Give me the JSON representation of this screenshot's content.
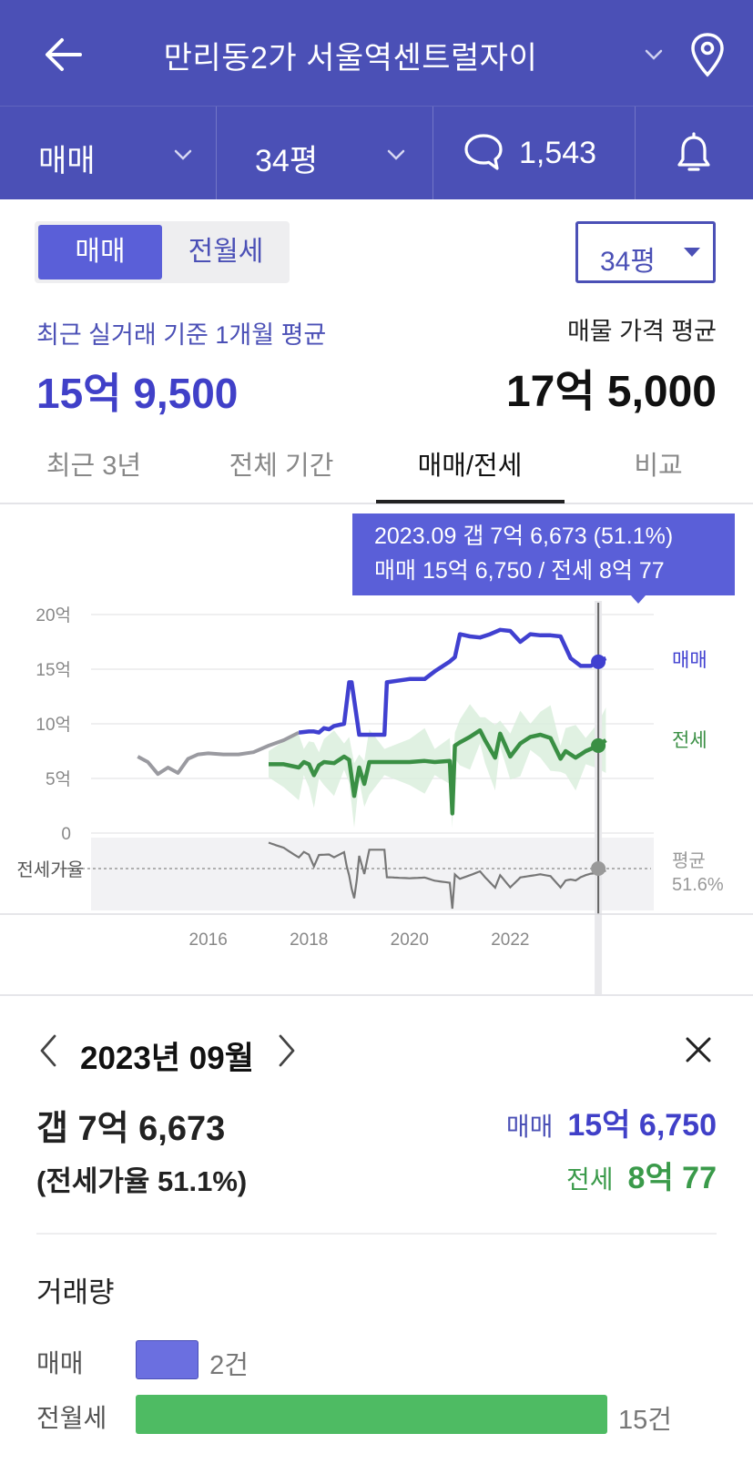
{
  "header": {
    "title": "만리동2가 서울역센트럴자이",
    "icons": [
      "back-arrow-icon",
      "chevron-down-icon",
      "location-pin-icon"
    ]
  },
  "subbar": {
    "deal_type": "매매",
    "size": "34평",
    "comment_count": "1,543",
    "icons": [
      "chevron-down-icon",
      "chat-bubble-icon",
      "bell-icon"
    ]
  },
  "toggle": {
    "sale": "매매",
    "rent": "전월세"
  },
  "size_select": "34평",
  "average": {
    "recent_label": "최근 실거래 기준 1개월 평균",
    "recent_value": "15억 9,500",
    "listing_label": "매물 가격 평균",
    "listing_value": "17억 5,000"
  },
  "tabs": [
    "최근 3년",
    "전체 기간",
    "매매/전세",
    "비교"
  ],
  "active_tab_index": 2,
  "tooltip": {
    "line1": "2023.09  갭 7억 6,673 (51.1%)",
    "line2": "매매 15억 6,750 / 전세 8억 77"
  },
  "chart_data": {
    "type": "line",
    "y_ticks": [
      "20억",
      "15억",
      "10억",
      "5억",
      "0"
    ],
    "x_ticks": [
      "2016",
      "2018",
      "2020",
      "2022"
    ],
    "ratio_axis_label": "전세가율",
    "ratio_avg_label": "평균",
    "ratio_avg_value": "51.6%",
    "ylim": [
      0,
      20
    ],
    "series": [
      {
        "name": "매매",
        "color": "#4040d0",
        "x": [
          2014.6,
          2014.8,
          2015.0,
          2015.2,
          2015.4,
          2015.6,
          2015.8,
          2016.0,
          2016.3,
          2016.6,
          2016.9,
          2017.2,
          2017.5,
          2017.8,
          2018.0,
          2018.1,
          2018.2,
          2018.3,
          2018.4,
          2018.5,
          2018.7,
          2018.8,
          2018.85,
          2019.0,
          2019.3,
          2019.5,
          2019.55,
          2019.7,
          2020.0,
          2020.3,
          2020.5,
          2020.8,
          2020.9,
          2021.0,
          2021.2,
          2021.4,
          2021.6,
          2021.8,
          2022.0,
          2022.2,
          2022.4,
          2022.6,
          2022.8,
          2023.0,
          2023.2,
          2023.4,
          2023.6,
          2023.75,
          2023.9
        ],
        "values": [
          7.0,
          6.5,
          5.4,
          6.0,
          5.5,
          6.8,
          7.2,
          7.3,
          7.2,
          7.2,
          7.4,
          8.0,
          8.5,
          9.2,
          9.3,
          9.3,
          9.2,
          9.6,
          9.5,
          9.8,
          10.0,
          13.8,
          13.8,
          9.0,
          9.0,
          9.0,
          13.8,
          13.9,
          14.1,
          14.1,
          14.8,
          15.7,
          16.1,
          18.2,
          18.0,
          17.9,
          18.2,
          18.6,
          18.5,
          17.5,
          18.2,
          18.1,
          18.1,
          18.0,
          16.0,
          15.3,
          15.3,
          15.7,
          16.0
        ]
      },
      {
        "name": "전세",
        "color": "#3a8f44",
        "x": [
          2017.2,
          2017.5,
          2017.8,
          2017.9,
          2018.0,
          2018.1,
          2018.2,
          2018.3,
          2018.5,
          2018.7,
          2018.8,
          2018.9,
          2019.0,
          2019.1,
          2019.2,
          2019.5,
          2020.0,
          2020.3,
          2020.5,
          2020.8,
          2020.85,
          2020.9,
          2021.0,
          2021.2,
          2021.4,
          2021.5,
          2021.7,
          2021.8,
          2022.0,
          2022.2,
          2022.4,
          2022.6,
          2022.8,
          2023.0,
          2023.1,
          2023.3,
          2023.5,
          2023.75,
          2023.9
        ],
        "values": [
          6.3,
          6.3,
          6.0,
          6.5,
          6.3,
          5.3,
          6.2,
          6.5,
          6.4,
          7.0,
          6.7,
          3.4,
          6.0,
          4.5,
          6.5,
          6.5,
          6.5,
          6.6,
          6.5,
          6.6,
          1.8,
          8.0,
          8.3,
          8.8,
          9.4,
          8.5,
          6.9,
          9.1,
          7.0,
          8.2,
          8.8,
          9.0,
          8.7,
          6.8,
          7.5,
          6.9,
          7.5,
          8.0,
          8.5
        ]
      }
    ],
    "selected": {
      "x": 2023.75,
      "sale": 15.675,
      "jeonse": 8.0077,
      "ratio": 51.1
    },
    "legend": [
      "매매",
      "전세"
    ]
  },
  "detail": {
    "month": "2023년 09월",
    "gap": "갭 7억 6,673",
    "ratio": "(전세가율 51.1%)",
    "sale_label": "매매",
    "sale_value": "15억 6,750",
    "jeonse_label": "전세",
    "jeonse_value": "8억 77"
  },
  "volume": {
    "title": "거래량",
    "max_count": 15,
    "rows": [
      {
        "label": "매매",
        "count": 2,
        "count_text": "2건",
        "color": "#6b6fe0"
      },
      {
        "label": "전월세",
        "count": 15,
        "count_text": "15건",
        "color": "#4ebb63"
      }
    ]
  }
}
